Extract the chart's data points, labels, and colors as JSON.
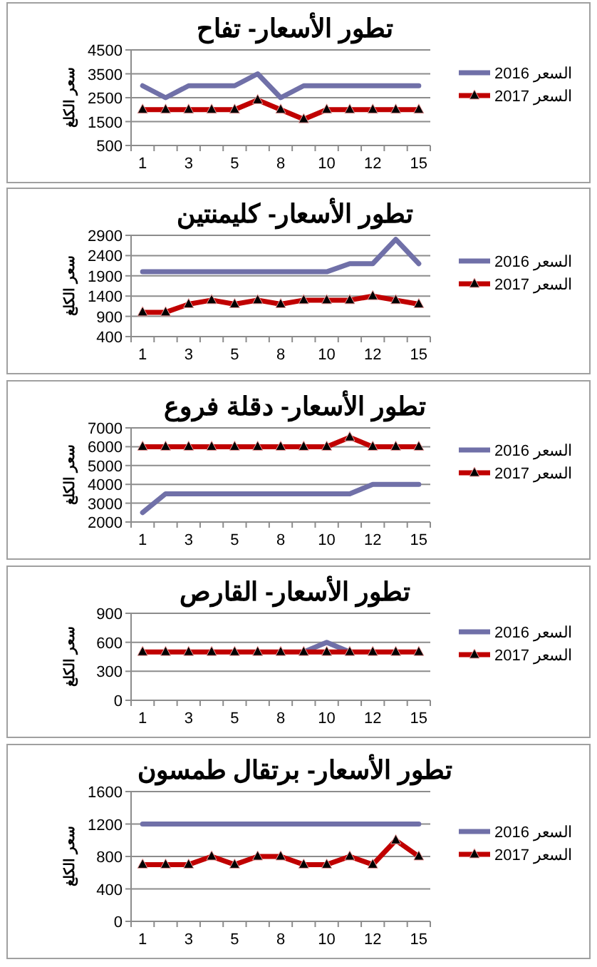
{
  "chart_data": [
    {
      "type": "line",
      "title": "تطور الأسعار- تفاح",
      "ylabel": "سعر الكلغ",
      "categories": [
        "1",
        null,
        "3",
        null,
        "5",
        null,
        "8",
        null,
        "10",
        null,
        "12",
        null,
        "15"
      ],
      "ylim": [
        500,
        4500
      ],
      "yticks": [
        500,
        1500,
        2500,
        3500,
        4500
      ],
      "grid": "y",
      "legend": "right",
      "series": [
        {
          "name": "السعر 2016",
          "color": "#7070a8",
          "marker": "none",
          "values": [
            3000,
            2500,
            3000,
            3000,
            3000,
            3500,
            2500,
            3000,
            3000,
            3000,
            3000,
            3000,
            3000
          ]
        },
        {
          "name": "السعر 2017",
          "color": "#c00000",
          "marker": "triangle",
          "values": [
            2000,
            2000,
            2000,
            2000,
            2000,
            2400,
            2000,
            1600,
            2000,
            2000,
            2000,
            2000,
            2000
          ]
        }
      ]
    },
    {
      "type": "line",
      "title": "تطور الأسعار- كليمنتين",
      "ylabel": "سعر الكلغ",
      "categories": [
        "1",
        null,
        "3",
        null,
        "5",
        null,
        "8",
        null,
        "10",
        null,
        "12",
        null,
        "15"
      ],
      "ylim": [
        400,
        2900
      ],
      "yticks": [
        400,
        900,
        1400,
        1900,
        2400,
        2900
      ],
      "grid": "y",
      "legend": "right",
      "series": [
        {
          "name": "السعر 2016",
          "color": "#7070a8",
          "marker": "none",
          "values": [
            2000,
            2000,
            2000,
            2000,
            2000,
            2000,
            2000,
            2000,
            2000,
            2200,
            2200,
            2800,
            2200
          ]
        },
        {
          "name": "السعر 2017",
          "color": "#c00000",
          "marker": "triangle",
          "values": [
            1000,
            1000,
            1200,
            1300,
            1200,
            1300,
            1200,
            1300,
            1300,
            1300,
            1400,
            1300,
            1200
          ]
        }
      ]
    },
    {
      "type": "line",
      "title": "تطور الأسعار- دقلة فروع",
      "ylabel": "سعر الكلغ",
      "categories": [
        "1",
        null,
        "3",
        null,
        "5",
        null,
        "8",
        null,
        "10",
        null,
        "12",
        null,
        "15"
      ],
      "ylim": [
        2000,
        7000
      ],
      "yticks": [
        2000,
        3000,
        4000,
        5000,
        6000,
        7000
      ],
      "grid": "y",
      "legend": "right",
      "series": [
        {
          "name": "السعر 2016",
          "color": "#7070a8",
          "marker": "none",
          "values": [
            2500,
            3500,
            3500,
            3500,
            3500,
            3500,
            3500,
            3500,
            3500,
            3500,
            4000,
            4000,
            4000
          ]
        },
        {
          "name": "السعر 2017",
          "color": "#c00000",
          "marker": "triangle",
          "values": [
            6000,
            6000,
            6000,
            6000,
            6000,
            6000,
            6000,
            6000,
            6000,
            6500,
            6000,
            6000,
            6000
          ]
        }
      ]
    },
    {
      "type": "line",
      "title": "تطور الأسعار- القارص",
      "ylabel": "سعر الكلغ",
      "categories": [
        "1",
        null,
        "3",
        null,
        "5",
        null,
        "8",
        null,
        "10",
        null,
        "12",
        null,
        "15"
      ],
      "ylim": [
        0,
        900
      ],
      "yticks": [
        0,
        300,
        600,
        900
      ],
      "grid": "y",
      "legend": "right",
      "series": [
        {
          "name": "السعر 2016",
          "color": "#7070a8",
          "marker": "none",
          "values": [
            null,
            null,
            null,
            null,
            null,
            null,
            null,
            500,
            600,
            500,
            null,
            null,
            null
          ]
        },
        {
          "name": "السعر 2017",
          "color": "#c00000",
          "marker": "triangle",
          "values": [
            500,
            500,
            500,
            500,
            500,
            500,
            500,
            500,
            500,
            500,
            500,
            500,
            500
          ]
        }
      ]
    },
    {
      "type": "line",
      "title": "تطور الأسعار- برتقال طمسون",
      "ylabel": "سعر الكلغ",
      "categories": [
        "1",
        null,
        "3",
        null,
        "5",
        null,
        "8",
        null,
        "10",
        null,
        "12",
        null,
        "15"
      ],
      "ylim": [
        0,
        1600
      ],
      "yticks": [
        0,
        400,
        800,
        1200,
        1600
      ],
      "grid": "y",
      "legend": "right",
      "series": [
        {
          "name": "السعر 2016",
          "color": "#7070a8",
          "marker": "none",
          "values": [
            1200,
            1200,
            1200,
            1200,
            1200,
            1200,
            1200,
            1200,
            1200,
            1200,
            1200,
            1200,
            1200
          ]
        },
        {
          "name": "السعر 2017",
          "color": "#c00000",
          "marker": "triangle",
          "values": [
            700,
            700,
            700,
            800,
            700,
            800,
            800,
            700,
            700,
            800,
            700,
            1000,
            800
          ]
        }
      ]
    }
  ]
}
